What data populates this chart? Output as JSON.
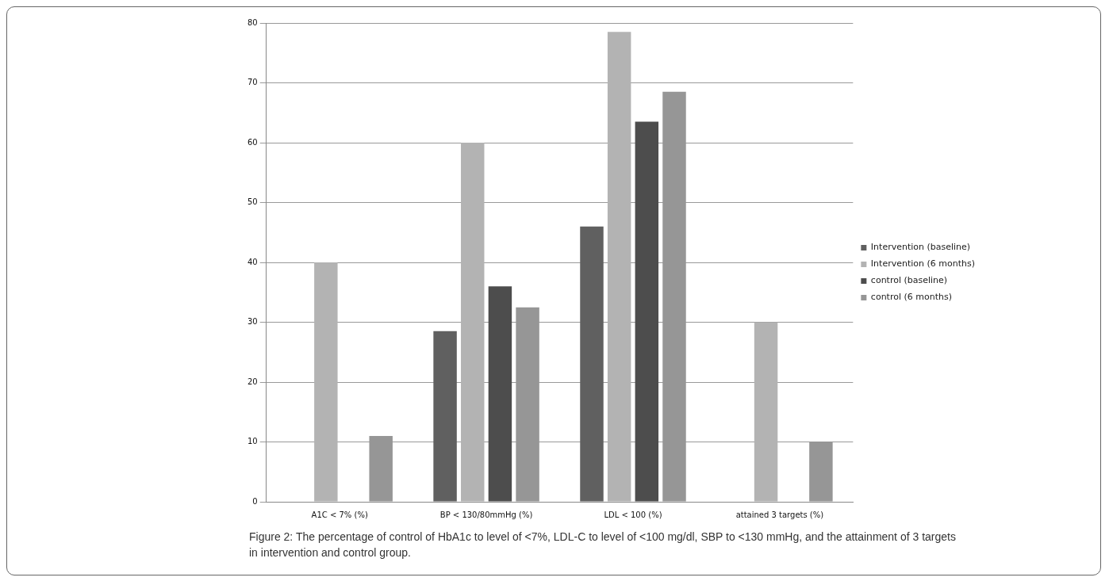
{
  "chart_data": {
    "type": "bar",
    "categories": [
      "A1C < 7% (%)",
      "BP < 130/80mmHg (%)",
      "LDL < 100 (%)",
      "attained 3 targets (%)"
    ],
    "series": [
      {
        "name": "Intervention (baseline)",
        "color": "#606060",
        "values": [
          0,
          28.5,
          46,
          0
        ]
      },
      {
        "name": "Intervention (6 months)",
        "color": "#b3b3b3",
        "values": [
          40,
          60,
          78.5,
          30
        ]
      },
      {
        "name": "control (baseline)",
        "color": "#4d4d4d",
        "values": [
          0,
          36,
          63.5,
          0
        ]
      },
      {
        "name": "control (6 months)",
        "color": "#969696",
        "values": [
          11,
          32.5,
          68.5,
          10
        ]
      }
    ],
    "ylim": [
      0,
      80
    ],
    "yticks": [
      0,
      10,
      20,
      30,
      40,
      50,
      60,
      70,
      80
    ],
    "grid": "y",
    "legend": "right",
    "annotations": [
      "Figure 2: The percentage of control of HbA1c to level of <7%, LDL-C to level of <100 mg/dl, SBP to <130 mmHg, and the attainment of 3 targets in intervention and control group."
    ]
  }
}
